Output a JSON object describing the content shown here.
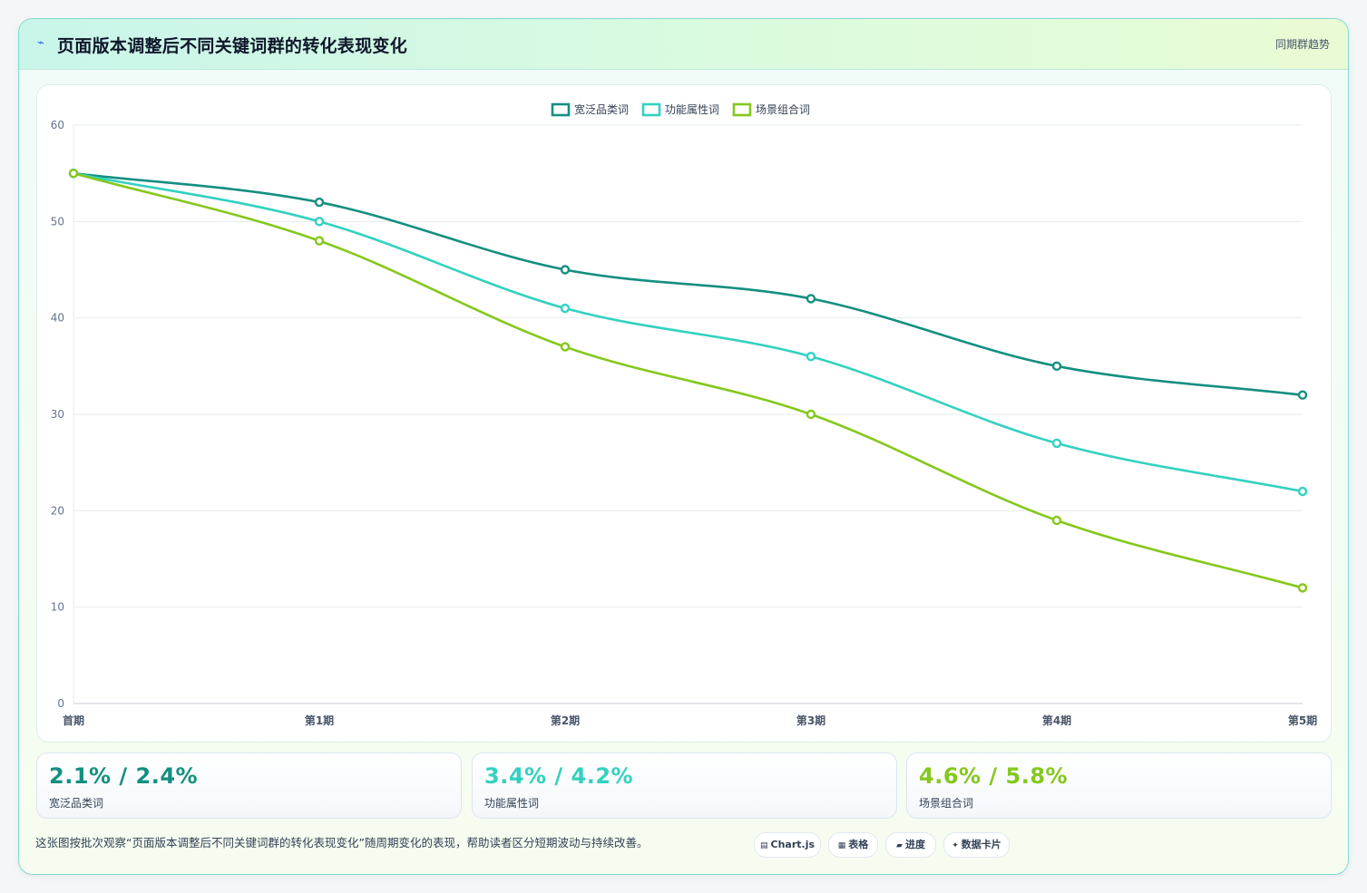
{
  "header": {
    "title": "页面版本调整后不同关键词群的转化表现变化",
    "tag": "同期群趋势",
    "icon": "sparkle-icon"
  },
  "chart_data": {
    "type": "line",
    "categories": [
      "首期",
      "第1期",
      "第2期",
      "第3期",
      "第4期",
      "第5期"
    ],
    "ylim": [
      0,
      60
    ],
    "yticks": [
      0,
      10,
      20,
      30,
      40,
      50,
      60
    ],
    "grid": true,
    "legend_position": "top",
    "series": [
      {
        "name": "宽泛品类词",
        "color": "#148f80",
        "values": [
          55,
          52,
          45,
          42,
          35,
          32
        ]
      },
      {
        "name": "功能属性词",
        "color": "#33d1c0",
        "values": [
          55,
          50,
          41,
          36,
          27,
          22
        ]
      },
      {
        "name": "场景组合词",
        "color": "#84c81c",
        "values": [
          55,
          48,
          37,
          30,
          19,
          12
        ]
      }
    ]
  },
  "kpis": [
    {
      "value": "2.1% / 2.4%",
      "label": "宽泛品类词",
      "color": "#148f80"
    },
    {
      "value": "3.4% / 4.2%",
      "label": "功能属性词",
      "color": "#33d1c0"
    },
    {
      "value": "4.6% / 5.8%",
      "label": "场景组合词",
      "color": "#84c81c"
    }
  ],
  "footer": {
    "note": "这张图按批次观察“页面版本调整后不同关键词群的转化表现变化”随周期变化的表现，帮助读者区分短期波动与持续改善。",
    "chips": [
      {
        "icon": "▤",
        "label": "Chart.js"
      },
      {
        "icon": "▦",
        "label": "表格"
      },
      {
        "icon": "▰",
        "label": "进度"
      },
      {
        "icon": "✦",
        "label": "数据卡片"
      }
    ]
  }
}
